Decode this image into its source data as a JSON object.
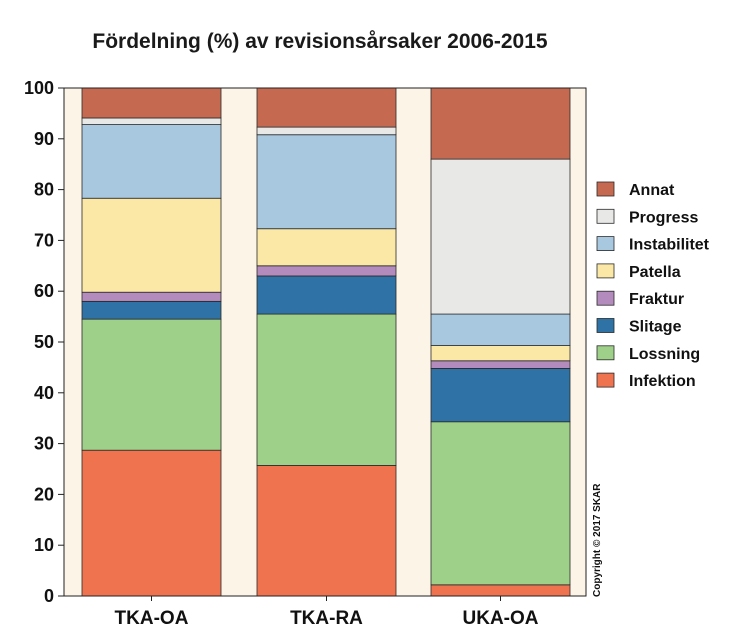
{
  "chart_data": {
    "type": "bar",
    "stacked": true,
    "title": "Fördelning (%) av revisionsårsaker 2006-2015",
    "categories": [
      "TKA-OA",
      "TKA-RA",
      "UKA-OA"
    ],
    "ylim": [
      0,
      100
    ],
    "yticks": [
      "0",
      "10",
      "20",
      "30",
      "40",
      "50",
      "60",
      "70",
      "80",
      "90",
      "100"
    ],
    "legend_position": "right",
    "series": [
      {
        "name": "Infektion",
        "color": "#f07350",
        "values": [
          28.7,
          25.7,
          2.2
        ]
      },
      {
        "name": "Lossning",
        "color": "#9fd08a",
        "values": [
          25.8,
          29.8,
          32.1
        ]
      },
      {
        "name": "Slitage",
        "color": "#2f72a6",
        "values": [
          3.5,
          7.5,
          10.5
        ]
      },
      {
        "name": "Fraktur",
        "color": "#b48bbd",
        "values": [
          1.8,
          2.0,
          1.5
        ]
      },
      {
        "name": "Patella",
        "color": "#fbe8a6",
        "values": [
          18.5,
          7.3,
          3.0
        ]
      },
      {
        "name": "Instabilitet",
        "color": "#a8c8e0",
        "values": [
          14.5,
          18.5,
          6.2
        ]
      },
      {
        "name": "Progress",
        "color": "#e8e8e6",
        "values": [
          1.3,
          1.5,
          30.5
        ]
      },
      {
        "name": "Annat",
        "color": "#c56a50",
        "values": [
          5.9,
          7.7,
          14.0
        ]
      }
    ],
    "plot_background": "#fcf4e6",
    "copyright": "Copyright © 2017 SKAR"
  }
}
